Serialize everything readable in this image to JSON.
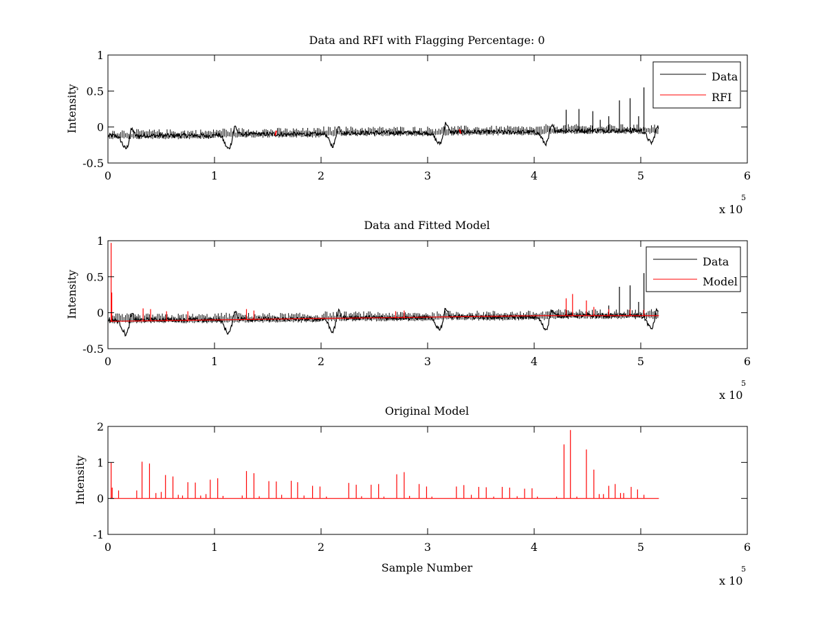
{
  "chart_data": [
    {
      "type": "line",
      "title": "Data and RFI with Flagging Percentage: 0",
      "xlabel": "",
      "ylabel": "Intensity",
      "xlim": [
        0,
        600000
      ],
      "ylim": [
        -0.5,
        1
      ],
      "x_ticks": [
        "0",
        "1",
        "2",
        "3",
        "4",
        "5",
        "6"
      ],
      "y_ticks": [
        "-0.5",
        "0",
        "0.5",
        "1"
      ],
      "x_multiplier": {
        "base": "x 10",
        "exponent": "5"
      },
      "grid": false,
      "legend_position": "top-right",
      "series": [
        {
          "name": "Data",
          "color": "#000000",
          "x_range": [
            0,
            517000
          ],
          "segments": [
            {
              "x0": 0,
              "x1": 100000,
              "level": -0.12
            },
            {
              "x0": 100000,
              "x1": 200000,
              "level": -0.1
            },
            {
              "x0": 200000,
              "x1": 310000,
              "level": -0.08
            },
            {
              "x0": 310000,
              "x1": 410000,
              "level": -0.07
            },
            {
              "x0": 410000,
              "x1": 517000,
              "level": -0.05
            }
          ],
          "dips": [
            {
              "x": 17000,
              "depth": -0.3
            },
            {
              "x": 113000,
              "depth": -0.3
            },
            {
              "x": 211000,
              "depth": -0.26
            },
            {
              "x": 311000,
              "depth": -0.23
            },
            {
              "x": 411000,
              "depth": -0.23
            },
            {
              "x": 510000,
              "depth": -0.22
            }
          ],
          "bumps": [
            {
              "x": 22000,
              "peak": 0.03
            },
            {
              "x": 119000,
              "peak": 0.05
            },
            {
              "x": 216000,
              "peak": 0.06
            },
            {
              "x": 317000,
              "peak": 0.09
            },
            {
              "x": 416000,
              "peak": 0.07
            },
            {
              "x": 515000,
              "peak": 0.05
            }
          ],
          "spikes": [
            {
              "x": 430000,
              "y": 0.24
            },
            {
              "x": 442000,
              "y": 0.25
            },
            {
              "x": 455000,
              "y": 0.22
            },
            {
              "x": 480000,
              "y": 0.37
            },
            {
              "x": 490000,
              "y": 0.4
            },
            {
              "x": 503000,
              "y": 0.55
            },
            {
              "x": 498000,
              "y": 0.15
            },
            {
              "x": 470000,
              "y": 0.15
            },
            {
              "x": 462000,
              "y": 0.1
            }
          ]
        },
        {
          "name": "RFI",
          "color": "#ff0000",
          "points": [
            {
              "x": 157000,
              "y": -0.12
            },
            {
              "x": 158000,
              "y": -0.05
            },
            {
              "x": 330000,
              "y": -0.03
            },
            {
              "x": 331000,
              "y": -0.09
            }
          ]
        }
      ]
    },
    {
      "type": "line",
      "title": "Data and Fitted Model",
      "xlabel": "",
      "ylabel": "Intensity",
      "xlim": [
        0,
        600000
      ],
      "ylim": [
        -0.5,
        1
      ],
      "x_ticks": [
        "0",
        "1",
        "2",
        "3",
        "4",
        "5",
        "6"
      ],
      "y_ticks": [
        "-0.5",
        "0",
        "0.5",
        "1"
      ],
      "x_multiplier": {
        "base": "x 10",
        "exponent": "5"
      },
      "grid": false,
      "legend_position": "top-right",
      "series": [
        {
          "name": "Data",
          "color": "#000000",
          "x_range": [
            0,
            517000
          ],
          "segments": [
            {
              "x0": 0,
              "x1": 100000,
              "level": -0.1
            },
            {
              "x0": 100000,
              "x1": 200000,
              "level": -0.09
            },
            {
              "x0": 200000,
              "x1": 310000,
              "level": -0.07
            },
            {
              "x0": 310000,
              "x1": 410000,
              "level": -0.06
            },
            {
              "x0": 410000,
              "x1": 517000,
              "level": -0.04
            }
          ],
          "dips": [
            {
              "x": 17000,
              "depth": -0.3
            },
            {
              "x": 113000,
              "depth": -0.28
            },
            {
              "x": 211000,
              "depth": -0.26
            },
            {
              "x": 311000,
              "depth": -0.22
            },
            {
              "x": 411000,
              "depth": -0.23
            },
            {
              "x": 510000,
              "depth": -0.22
            }
          ],
          "bumps": [
            {
              "x": 22000,
              "peak": 0.04
            },
            {
              "x": 119000,
              "peak": 0.07
            },
            {
              "x": 216000,
              "peak": 0.08
            },
            {
              "x": 317000,
              "peak": 0.1
            },
            {
              "x": 416000,
              "peak": 0.1
            },
            {
              "x": 515000,
              "peak": 0.1
            }
          ],
          "spikes": [
            {
              "x": 480000,
              "y": 0.36
            },
            {
              "x": 490000,
              "y": 0.38
            },
            {
              "x": 503000,
              "y": 0.55
            },
            {
              "x": 470000,
              "y": 0.1
            },
            {
              "x": 498000,
              "y": 0.15
            }
          ]
        },
        {
          "name": "Model",
          "color": "#ff0000",
          "baseline": [
            {
              "x": 2000,
              "y": -0.12
            },
            {
              "x": 100000,
              "y": -0.1
            },
            {
              "x": 200000,
              "y": -0.08
            },
            {
              "x": 310000,
              "y": -0.06
            },
            {
              "x": 410000,
              "y": -0.04
            },
            {
              "x": 517000,
              "y": -0.04
            }
          ],
          "spikes": [
            {
              "x": 3000,
              "y": 0.97
            },
            {
              "x": 3600,
              "y": 0.28
            },
            {
              "x": 33000,
              "y": 0.06
            },
            {
              "x": 40000,
              "y": 0.05
            },
            {
              "x": 55000,
              "y": 0.02
            },
            {
              "x": 75000,
              "y": 0.02
            },
            {
              "x": 130000,
              "y": 0.05
            },
            {
              "x": 137000,
              "y": 0.03
            },
            {
              "x": 270000,
              "y": 0.02
            },
            {
              "x": 278000,
              "y": 0.03
            },
            {
              "x": 430000,
              "y": 0.2
            },
            {
              "x": 436000,
              "y": 0.26
            },
            {
              "x": 449000,
              "y": 0.17
            },
            {
              "x": 456000,
              "y": 0.08
            },
            {
              "x": 470000,
              "y": 0.05
            },
            {
              "x": 490000,
              "y": 0.05
            },
            {
              "x": 503000,
              "y": 0.04
            }
          ]
        }
      ]
    },
    {
      "type": "line",
      "title": "Original Model",
      "xlabel": "Sample Number",
      "ylabel": "Intensity",
      "xlim": [
        0,
        600000
      ],
      "ylim": [
        -1,
        2
      ],
      "x_ticks": [
        "0",
        "1",
        "2",
        "3",
        "4",
        "5",
        "6"
      ],
      "y_ticks": [
        "-1",
        "0",
        "1",
        "2"
      ],
      "x_multiplier": {
        "base": "x 10",
        "exponent": "5"
      },
      "grid": false,
      "series": [
        {
          "color": "#ff0000",
          "x_range": [
            2000,
            517000
          ],
          "spikes": [
            {
              "x": 3000,
              "y": 0.99
            },
            {
              "x": 4000,
              "y": 0.3
            },
            {
              "x": 10000,
              "y": 0.22
            },
            {
              "x": 27000,
              "y": 0.22
            },
            {
              "x": 32000,
              "y": 1.02
            },
            {
              "x": 39000,
              "y": 0.97
            },
            {
              "x": 45000,
              "y": 0.15
            },
            {
              "x": 50000,
              "y": 0.18
            },
            {
              "x": 54000,
              "y": 0.65
            },
            {
              "x": 61000,
              "y": 0.61
            },
            {
              "x": 66000,
              "y": 0.1
            },
            {
              "x": 70000,
              "y": 0.08
            },
            {
              "x": 75000,
              "y": 0.45
            },
            {
              "x": 82000,
              "y": 0.44
            },
            {
              "x": 87000,
              "y": 0.08
            },
            {
              "x": 92000,
              "y": 0.12
            },
            {
              "x": 96000,
              "y": 0.52
            },
            {
              "x": 103000,
              "y": 0.56
            },
            {
              "x": 108000,
              "y": 0.07
            },
            {
              "x": 126000,
              "y": 0.08
            },
            {
              "x": 130000,
              "y": 0.76
            },
            {
              "x": 137000,
              "y": 0.7
            },
            {
              "x": 142000,
              "y": 0.06
            },
            {
              "x": 151000,
              "y": 0.48
            },
            {
              "x": 158000,
              "y": 0.47
            },
            {
              "x": 163000,
              "y": 0.1
            },
            {
              "x": 172000,
              "y": 0.49
            },
            {
              "x": 178000,
              "y": 0.45
            },
            {
              "x": 184000,
              "y": 0.08
            },
            {
              "x": 192000,
              "y": 0.35
            },
            {
              "x": 199000,
              "y": 0.33
            },
            {
              "x": 205000,
              "y": 0.05
            },
            {
              "x": 226000,
              "y": 0.43
            },
            {
              "x": 233000,
              "y": 0.38
            },
            {
              "x": 238000,
              "y": 0.06
            },
            {
              "x": 247000,
              "y": 0.38
            },
            {
              "x": 254000,
              "y": 0.4
            },
            {
              "x": 259000,
              "y": 0.05
            },
            {
              "x": 271000,
              "y": 0.67
            },
            {
              "x": 278000,
              "y": 0.73
            },
            {
              "x": 283000,
              "y": 0.07
            },
            {
              "x": 292000,
              "y": 0.4
            },
            {
              "x": 299000,
              "y": 0.33
            },
            {
              "x": 304000,
              "y": 0.05
            },
            {
              "x": 327000,
              "y": 0.33
            },
            {
              "x": 334000,
              "y": 0.37
            },
            {
              "x": 341000,
              "y": 0.1
            },
            {
              "x": 348000,
              "y": 0.32
            },
            {
              "x": 355000,
              "y": 0.31
            },
            {
              "x": 362000,
              "y": 0.05
            },
            {
              "x": 370000,
              "y": 0.32
            },
            {
              "x": 377000,
              "y": 0.3
            },
            {
              "x": 384000,
              "y": 0.06
            },
            {
              "x": 391000,
              "y": 0.27
            },
            {
              "x": 398000,
              "y": 0.28
            },
            {
              "x": 403000,
              "y": 0.05
            },
            {
              "x": 421000,
              "y": 0.05
            },
            {
              "x": 428000,
              "y": 1.5
            },
            {
              "x": 434000,
              "y": 1.9
            },
            {
              "x": 440000,
              "y": 0.05
            },
            {
              "x": 449000,
              "y": 1.36
            },
            {
              "x": 456000,
              "y": 0.8
            },
            {
              "x": 461000,
              "y": 0.12
            },
            {
              "x": 465000,
              "y": 0.12
            },
            {
              "x": 470000,
              "y": 0.35
            },
            {
              "x": 476000,
              "y": 0.4
            },
            {
              "x": 481000,
              "y": 0.15
            },
            {
              "x": 484000,
              "y": 0.15
            },
            {
              "x": 491000,
              "y": 0.32
            },
            {
              "x": 497000,
              "y": 0.25
            },
            {
              "x": 503000,
              "y": 0.1
            }
          ]
        }
      ]
    }
  ]
}
